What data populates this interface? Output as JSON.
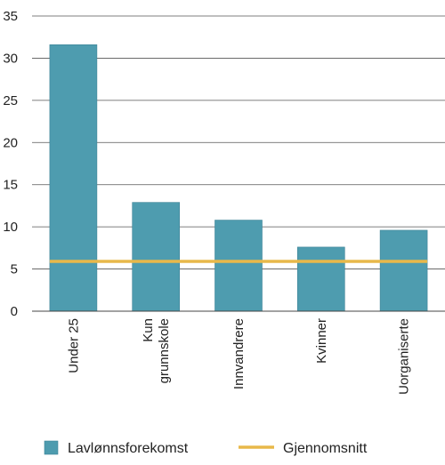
{
  "chart_data": {
    "type": "bar",
    "categories": [
      [
        "Under 25"
      ],
      [
        "Kun",
        "grunnskole"
      ],
      [
        "Innvandrere"
      ],
      [
        "Kvinner"
      ],
      [
        "Uorganiserte"
      ]
    ],
    "series": [
      {
        "name": "Lavlønnsforekomst",
        "type": "bar",
        "values": [
          31.6,
          12.9,
          10.8,
          7.6,
          9.6
        ],
        "color": "#4e9caf"
      },
      {
        "name": "Gjennomsnitt",
        "type": "line",
        "values": [
          5.9,
          5.9,
          5.9,
          5.9,
          5.9
        ],
        "color": "#e8b84a"
      }
    ],
    "ylim": [
      0,
      35
    ],
    "yticks": [
      0,
      5,
      10,
      15,
      20,
      25,
      30,
      35
    ],
    "grid": true,
    "legend": "bottom",
    "title": "",
    "xlabel": "",
    "ylabel": ""
  }
}
